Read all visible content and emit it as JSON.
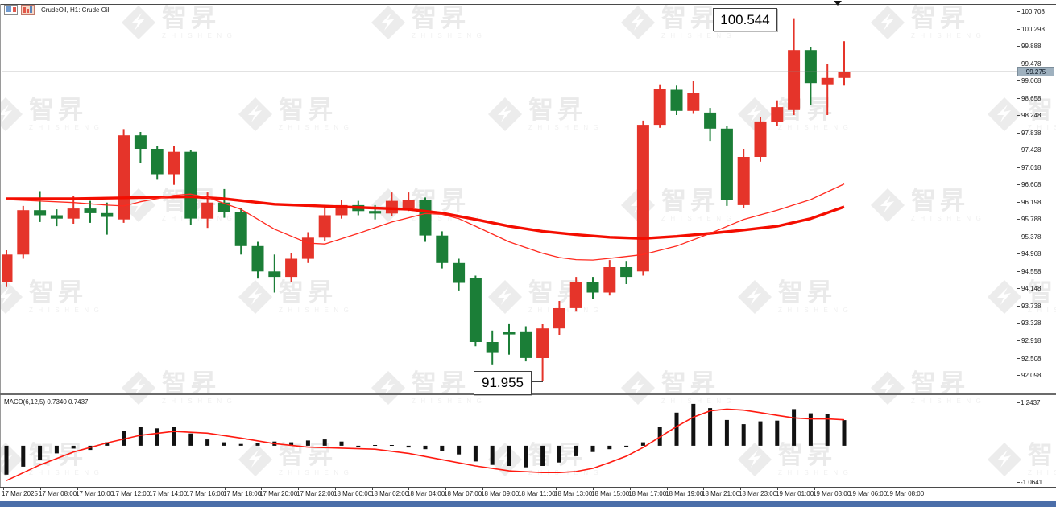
{
  "header": {
    "symbol_label": "CrudeOil, H1: Crude Oil"
  },
  "watermark": {
    "text": "智昇",
    "subtext": "ZHISHENG"
  },
  "chart_data": {
    "type": "candlestick",
    "title": "CrudeOil H1 with MACD",
    "price_axis": {
      "max": 100.708,
      "min": 92.098,
      "current_price": "99.275",
      "ticks": [
        "100.708",
        "100.298",
        "99.888",
        "99.478",
        "99.068",
        "98.658",
        "98.248",
        "97.838",
        "97.428",
        "97.018",
        "96.608",
        "96.198",
        "95.788",
        "95.378",
        "94.968",
        "94.558",
        "94.148",
        "93.738",
        "93.328",
        "92.918",
        "92.508",
        "92.098"
      ]
    },
    "time_axis": {
      "labels": [
        "17 Mar 2025",
        "17 Mar 08:00",
        "17 Mar 10:00",
        "17 Mar 12:00",
        "17 Mar 14:00",
        "17 Mar 16:00",
        "17 Mar 18:00",
        "17 Mar 20:00",
        "17 Mar 22:00",
        "18 Mar 00:00",
        "18 Mar 02:00",
        "18 Mar 04:00",
        "18 Mar 07:00",
        "18 Mar 09:00",
        "18 Mar 11:00",
        "18 Mar 13:00",
        "18 Mar 15:00",
        "18 Mar 17:00",
        "18 Mar 19:00",
        "18 Mar 21:00",
        "18 Mar 23:00",
        "19 Mar 01:00",
        "19 Mar 03:00",
        "19 Mar 06:00",
        "19 Mar 08:00"
      ]
    },
    "annotations": [
      {
        "label": "100.544",
        "anchor": "high",
        "candle_index": 47
      },
      {
        "label": "91.955",
        "anchor": "low",
        "candle_index": 32
      }
    ],
    "candles": [
      [
        94.3,
        95.05,
        94.18,
        94.95
      ],
      [
        94.95,
        96.1,
        94.85,
        96.0
      ],
      [
        96.0,
        96.45,
        95.72,
        95.88
      ],
      [
        95.88,
        96.02,
        95.62,
        95.8
      ],
      [
        95.8,
        96.33,
        95.68,
        96.04
      ],
      [
        96.04,
        96.22,
        95.7,
        95.93
      ],
      [
        95.93,
        96.18,
        95.42,
        95.84
      ],
      [
        95.78,
        97.92,
        95.7,
        97.77
      ],
      [
        97.77,
        97.85,
        97.12,
        97.45
      ],
      [
        97.45,
        97.52,
        96.72,
        96.85
      ],
      [
        96.85,
        97.52,
        96.6,
        97.38
      ],
      [
        97.38,
        97.42,
        95.65,
        95.8
      ],
      [
        95.8,
        96.42,
        95.58,
        96.18
      ],
      [
        96.18,
        96.5,
        95.82,
        95.95
      ],
      [
        95.95,
        96.05,
        94.95,
        95.15
      ],
      [
        95.15,
        95.25,
        94.38,
        94.55
      ],
      [
        94.55,
        94.95,
        94.05,
        94.42
      ],
      [
        94.42,
        94.98,
        94.3,
        94.85
      ],
      [
        94.85,
        95.48,
        94.75,
        95.35
      ],
      [
        95.35,
        96.12,
        95.28,
        95.88
      ],
      [
        95.88,
        96.25,
        95.8,
        96.12
      ],
      [
        96.12,
        96.22,
        95.88,
        95.98
      ],
      [
        95.98,
        96.12,
        95.78,
        95.92
      ],
      [
        95.92,
        96.42,
        95.85,
        96.22
      ],
      [
        96.06,
        96.42,
        95.98,
        96.25
      ],
      [
        96.25,
        96.3,
        95.25,
        95.4
      ],
      [
        95.4,
        95.5,
        94.62,
        94.75
      ],
      [
        94.75,
        94.85,
        94.1,
        94.28
      ],
      [
        94.4,
        94.45,
        92.78,
        92.88
      ],
      [
        92.88,
        93.15,
        92.35,
        92.62
      ],
      [
        93.12,
        93.32,
        92.58,
        93.06
      ],
      [
        93.13,
        93.25,
        92.42,
        92.5
      ],
      [
        92.5,
        93.3,
        91.955,
        93.2
      ],
      [
        93.2,
        93.85,
        93.05,
        93.68
      ],
      [
        93.68,
        94.42,
        93.6,
        94.3
      ],
      [
        94.3,
        94.42,
        93.9,
        94.05
      ],
      [
        94.05,
        94.82,
        93.98,
        94.65
      ],
      [
        94.65,
        94.8,
        94.25,
        94.42
      ],
      [
        94.55,
        98.12,
        94.45,
        98.02
      ],
      [
        98.02,
        98.98,
        97.95,
        98.88
      ],
      [
        98.85,
        98.95,
        98.25,
        98.35
      ],
      [
        98.35,
        99.05,
        98.28,
        98.78
      ],
      [
        98.31,
        98.42,
        97.64,
        97.93
      ],
      [
        97.93,
        98.0,
        96.1,
        96.25
      ],
      [
        96.12,
        97.45,
        96.05,
        97.26
      ],
      [
        97.26,
        98.2,
        97.15,
        98.1
      ],
      [
        98.1,
        98.6,
        98.0,
        98.44
      ],
      [
        98.37,
        100.544,
        98.25,
        99.79
      ],
      [
        99.79,
        99.85,
        98.48,
        99.01
      ],
      [
        98.98,
        99.45,
        98.25,
        99.13
      ],
      [
        99.13,
        100.0,
        98.95,
        99.275
      ]
    ],
    "ma_slow_points": [
      [
        0,
        96.27
      ],
      [
        4,
        96.27
      ],
      [
        8,
        96.3
      ],
      [
        11,
        96.32
      ],
      [
        13,
        96.27
      ],
      [
        16,
        96.14
      ],
      [
        20,
        96.08
      ],
      [
        24,
        96.02
      ],
      [
        26,
        95.93
      ],
      [
        28,
        95.78
      ],
      [
        30,
        95.62
      ],
      [
        32,
        95.5
      ],
      [
        34,
        95.42
      ],
      [
        36,
        95.36
      ],
      [
        38,
        95.33
      ],
      [
        40,
        95.38
      ],
      [
        42,
        95.45
      ],
      [
        44,
        95.53
      ],
      [
        46,
        95.62
      ],
      [
        48,
        95.8
      ],
      [
        50,
        96.08
      ]
    ],
    "ma_fast_points": [
      [
        0,
        96.25
      ],
      [
        4,
        96.18
      ],
      [
        6,
        96.12
      ],
      [
        7,
        96.1
      ],
      [
        8,
        96.2
      ],
      [
        10,
        96.35
      ],
      [
        11,
        96.38
      ],
      [
        12,
        96.3
      ],
      [
        14,
        96.02
      ],
      [
        16,
        95.55
      ],
      [
        18,
        95.22
      ],
      [
        19,
        95.2
      ],
      [
        21,
        95.45
      ],
      [
        23,
        95.72
      ],
      [
        25,
        95.92
      ],
      [
        26,
        95.9
      ],
      [
        27,
        95.8
      ],
      [
        28,
        95.62
      ],
      [
        30,
        95.25
      ],
      [
        32,
        94.98
      ],
      [
        33,
        94.88
      ],
      [
        34,
        94.83
      ],
      [
        35,
        94.82
      ],
      [
        36,
        94.86
      ],
      [
        38,
        94.95
      ],
      [
        40,
        95.15
      ],
      [
        42,
        95.45
      ],
      [
        44,
        95.78
      ],
      [
        46,
        96.0
      ],
      [
        48,
        96.25
      ],
      [
        50,
        96.62
      ]
    ],
    "macd": {
      "label": "MACD(6,12,5) 0.7340 0.7437",
      "main_value": "0.7340",
      "signal_value": "0.7437",
      "axis_max": "1.2437",
      "axis_min": "-1.0641",
      "histogram": [
        -0.83,
        -0.6,
        -0.4,
        -0.22,
        -0.08,
        -0.12,
        0.1,
        0.43,
        0.55,
        0.5,
        0.55,
        0.35,
        0.18,
        0.1,
        0.05,
        0.08,
        0.12,
        0.1,
        0.15,
        0.18,
        0.12,
        -0.03,
        0.02,
        0.02,
        -0.05,
        -0.1,
        -0.15,
        -0.25,
        -0.45,
        -0.55,
        -0.58,
        -0.62,
        -0.58,
        -0.48,
        -0.3,
        -0.18,
        -0.1,
        -0.03,
        0.1,
        0.55,
        0.95,
        1.2,
        1.08,
        0.74,
        0.62,
        0.7,
        0.72,
        1.05,
        0.93,
        0.9,
        0.734
      ],
      "signal_points": [
        [
          0,
          -1.0
        ],
        [
          2,
          -0.55
        ],
        [
          4,
          -0.18
        ],
        [
          6,
          0.08
        ],
        [
          8,
          0.3
        ],
        [
          10,
          0.41
        ],
        [
          12,
          0.36
        ],
        [
          14,
          0.22
        ],
        [
          16,
          0.06
        ],
        [
          18,
          -0.04
        ],
        [
          20,
          -0.07
        ],
        [
          22,
          -0.1
        ],
        [
          24,
          -0.22
        ],
        [
          26,
          -0.4
        ],
        [
          28,
          -0.58
        ],
        [
          30,
          -0.72
        ],
        [
          32,
          -0.77
        ],
        [
          33,
          -0.77
        ],
        [
          34,
          -0.74
        ],
        [
          35,
          -0.65
        ],
        [
          36,
          -0.48
        ],
        [
          37,
          -0.3
        ],
        [
          38,
          -0.05
        ],
        [
          39,
          0.25
        ],
        [
          40,
          0.55
        ],
        [
          41,
          0.82
        ],
        [
          42,
          1.0
        ],
        [
          43,
          1.05
        ],
        [
          44,
          1.02
        ],
        [
          45,
          0.95
        ],
        [
          46,
          0.87
        ],
        [
          47,
          0.8
        ],
        [
          48,
          0.77
        ],
        [
          49,
          0.77
        ],
        [
          50,
          0.744
        ]
      ]
    },
    "colors": {
      "bull": "#e5342a",
      "bear": "#1b7e37",
      "ma_fast": "#ff2a1f",
      "ma_slow": "#f40d00",
      "macd_signal": "#ff1a10",
      "histogram": "#111111",
      "current_price_line": "#8a8a8a",
      "price_tag_bg": "#9fb1bf",
      "bottom_bar": "#4b6ea9"
    }
  }
}
